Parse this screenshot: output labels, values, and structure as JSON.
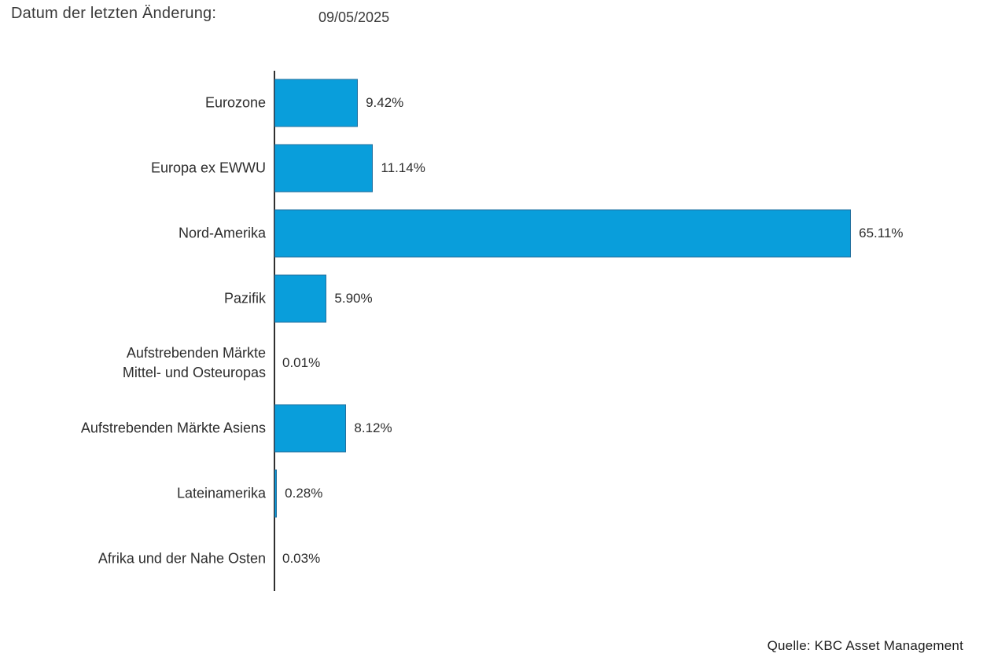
{
  "header": {
    "label": "Datum der letzten Änderung:",
    "date": "09/05/2025"
  },
  "footer": {
    "source": "Quelle: KBC Asset Management"
  },
  "chart_data": {
    "type": "bar",
    "orientation": "horizontal",
    "title": "",
    "xlabel": "",
    "ylabel": "",
    "categories": [
      "Eurozone",
      "Europa ex EWWU",
      "Nord-Amerika",
      "Pazifik",
      "Aufstrebenden Märkte\nMittel- und Osteuropas",
      "Aufstrebenden Märkte Asiens",
      "Lateinamerika",
      "Afrika und der Nahe Osten"
    ],
    "values": [
      9.42,
      11.14,
      65.11,
      5.9,
      0.01,
      8.12,
      0.28,
      0.03
    ],
    "value_labels": [
      "9.42%",
      "11.14%",
      "65.11%",
      "5.90%",
      "0.01%",
      "8.12%",
      "0.28%",
      "0.03%"
    ],
    "unit": "%",
    "xlim": [
      0,
      80
    ],
    "grid": false,
    "legend": false,
    "bar_color": "#099EDB",
    "bar_border_color": "#23709F",
    "axis_color": "#2f2f2f",
    "text_color": "#2d2d2d"
  }
}
